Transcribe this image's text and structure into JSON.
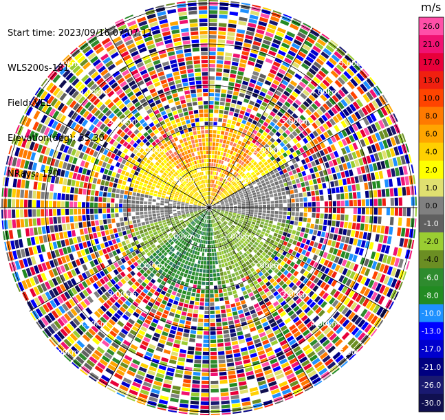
{
  "header": {
    "start_time": "Start time: 2023/09/16 07:07:11",
    "instrument": "WLS200s-181",
    "field": "Field: VEL",
    "elevation": "Elevation(deg): 35.30",
    "nrays": "NRays: 120"
  },
  "colorbar": {
    "unit": "m/s",
    "ticks": [
      "26.0",
      "21.0",
      "17.0",
      "13.0",
      "10.0",
      "8.0",
      "6.0",
      "4.0",
      "2.0",
      "1.0",
      "0.0",
      "-1.0",
      "-2.0",
      "-4.0",
      "-6.0",
      "-8.0",
      "-10.0",
      "-13.0",
      "-17.0",
      "-21.0",
      "-26.0",
      "-30.0"
    ],
    "colors": [
      "#ff4fa8",
      "#f01272",
      "#e8003a",
      "#f02010",
      "#ff4400",
      "#ff7a00",
      "#ffa500",
      "#ffd000",
      "#ffff00",
      "#e0e070",
      "#808080",
      "#606060",
      "#9acd32",
      "#6b8e23",
      "#2e8b2e",
      "#228b22",
      "#1e90ff",
      "#0000ff",
      "#0000cd",
      "#000080",
      "#191970",
      "#101050"
    ]
  },
  "range_rings": {
    "labels": [
      "1.00km",
      "2.00km",
      "3.00km",
      "4.00km",
      "5.00km"
    ]
  },
  "icons": {
    "crosshair": "crosshair-icon"
  }
}
